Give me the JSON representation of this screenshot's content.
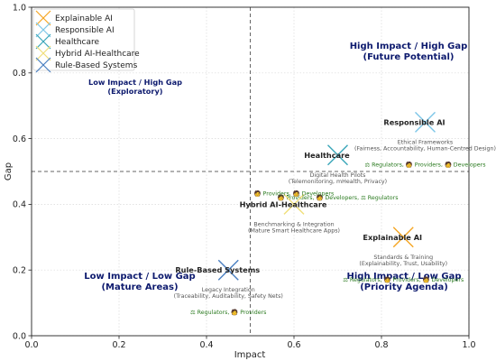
{
  "chart_data": {
    "type": "scatter",
    "xlabel": "Impact",
    "ylabel": "Gap",
    "xlim": [
      0,
      1
    ],
    "ylim": [
      0,
      1
    ],
    "xticks": [
      "0.0",
      "0.2",
      "0.4",
      "0.6",
      "0.8",
      "1.0"
    ],
    "yticks": [
      "0.0",
      "0.2",
      "0.4",
      "0.6",
      "0.8",
      "1.0"
    ],
    "grid": "dotted",
    "legend_position": "top-left",
    "thresholds": {
      "x": 0.5,
      "y": 0.5
    },
    "series": [
      {
        "name": "Explainable AI",
        "x": 0.85,
        "y": 0.3,
        "color": "#f5a623",
        "label": "Explainable AI",
        "description": "Standards & Training",
        "detail": "(Explainability, Trust, Usability)",
        "stakeholders": "⚖ Regulators, 🧑 Providers, 🧑 Developers"
      },
      {
        "name": "Responsible AI",
        "x": 0.9,
        "y": 0.65,
        "color": "#7cc6e8",
        "label": "Responsible AI",
        "description": "Ethical Frameworks",
        "detail": "(Fairness, Accountability, Human-Centred Design)",
        "stakeholders": "⚖ Regulators, 🧑 Providers, 🧑 Developers"
      },
      {
        "name": "Healthcare",
        "x": 0.7,
        "y": 0.55,
        "color": "#3aa6b9",
        "label": "Healthcare",
        "description": "Digital Health Pilots",
        "detail": "(Telemonitoring, mHealth, Privacy)",
        "stakeholders": "🧑 Providers, 🧑 Developers, ⚖ Regulators"
      },
      {
        "name": "Hybrid AI-Healthcare",
        "x": 0.6,
        "y": 0.4,
        "color": "#f0df7a",
        "label": "Hybrid AI-Healthcare",
        "description": "Benchmarking & Integration",
        "detail": "(Mature Smart Healthcare Apps)",
        "stakeholders": "🧑 Providers, 🧑 Developers"
      },
      {
        "name": "Rule-Based Systems",
        "x": 0.45,
        "y": 0.2,
        "color": "#4a7fc1",
        "label": "Rule-Based Systems",
        "description": "Legacy Integration",
        "detail": "(Traceability, Auditability, Safety Nets)",
        "stakeholders": "⚖ Regulators, 🧑 Providers"
      }
    ],
    "quadrants": [
      {
        "line1": "High Impact / High Gap",
        "line2": "(Future Potential)"
      },
      {
        "line1": "Low Impact / High Gap",
        "line2": "(Exploratory)"
      },
      {
        "line1": "Low Impact / Low Gap",
        "line2": "(Mature Areas)"
      },
      {
        "line1": "High Impact / Low Gap",
        "line2": "(Priority Agenda)"
      }
    ]
  }
}
